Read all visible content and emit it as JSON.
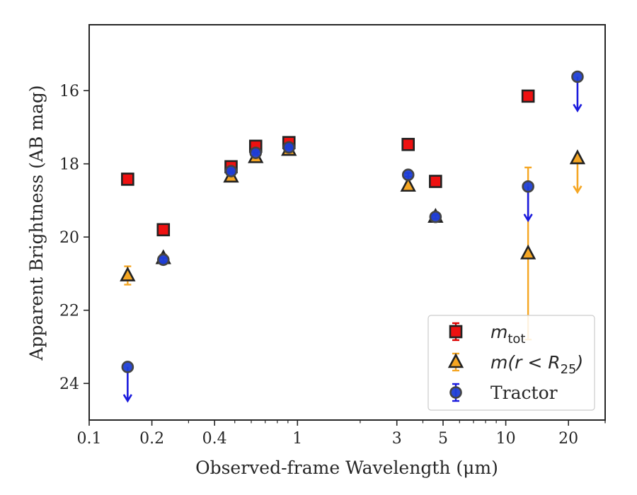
{
  "chart_data": {
    "type": "scatter",
    "xlabel": "Observed-frame Wavelength (μm)",
    "ylabel": "Apparent Brightness (AB mag)",
    "xscale": "log",
    "xlim": [
      0.1,
      30
    ],
    "ylim": [
      25,
      14.2
    ],
    "y_inverted": true,
    "xticks": [
      {
        "value": 0.1,
        "label": "0.1"
      },
      {
        "value": 0.2,
        "label": "0.2"
      },
      {
        "value": 0.4,
        "label": "0.4"
      },
      {
        "value": 1,
        "label": "1"
      },
      {
        "value": 3,
        "label": "3"
      },
      {
        "value": 5,
        "label": "5"
      },
      {
        "value": 10,
        "label": "10"
      },
      {
        "value": 20,
        "label": "20"
      }
    ],
    "yticks": [
      16,
      18,
      20,
      22,
      24
    ],
    "grid": false,
    "legend_position": "bottom-right",
    "series": [
      {
        "name": "m_tot",
        "marker": "square",
        "fill": "#ee1111",
        "edge": "#222222",
        "errcolor": "#dd0000",
        "points": [
          {
            "x": 0.153,
            "y": 18.42,
            "err": 0.04
          },
          {
            "x": 0.227,
            "y": 19.8,
            "err": 0.04
          },
          {
            "x": 0.48,
            "y": 18.08,
            "err": 0.04
          },
          {
            "x": 0.63,
            "y": 17.52,
            "err": 0.04
          },
          {
            "x": 0.91,
            "y": 17.42,
            "err": 0.04
          },
          {
            "x": 3.4,
            "y": 17.47,
            "err": 0.04
          },
          {
            "x": 4.6,
            "y": 18.48,
            "err": 0.04
          },
          {
            "x": 12.8,
            "y": 16.15,
            "err": 0.04
          }
        ]
      },
      {
        "name": "m(r < R25)",
        "marker": "triangle",
        "fill": "#f5a623",
        "edge": "#222222",
        "errcolor": "#f5a623",
        "points": [
          {
            "x": 0.153,
            "y": 21.05,
            "err": 0.25
          },
          {
            "x": 0.227,
            "y": 20.58,
            "err": 0.1
          },
          {
            "x": 0.48,
            "y": 18.35,
            "err": 0.05
          },
          {
            "x": 0.63,
            "y": 17.82,
            "err": 0.05
          },
          {
            "x": 0.91,
            "y": 17.62,
            "err": 0.05
          },
          {
            "x": 3.4,
            "y": 18.6,
            "err": 0.05
          },
          {
            "x": 4.6,
            "y": 19.45,
            "err": 0.05
          },
          {
            "x": 12.8,
            "y": 20.45,
            "err_low": 2.35,
            "err_high": 2.35
          },
          {
            "x": 22.1,
            "y": 17.85,
            "upper_limit": true
          }
        ]
      },
      {
        "name": "Tractor",
        "marker": "circle",
        "fill": "#1f3fd6",
        "edge": "#444444",
        "errcolor": "#1a1add",
        "points": [
          {
            "x": 0.153,
            "y": 23.55,
            "upper_limit": true
          },
          {
            "x": 0.227,
            "y": 20.62,
            "err": 0.05
          },
          {
            "x": 0.48,
            "y": 18.2,
            "err": 0.05
          },
          {
            "x": 0.63,
            "y": 17.7,
            "err": 0.05
          },
          {
            "x": 0.91,
            "y": 17.55,
            "err": 0.05
          },
          {
            "x": 3.4,
            "y": 18.3,
            "err": 0.05
          },
          {
            "x": 4.6,
            "y": 19.45,
            "err": 0.05
          },
          {
            "x": 12.8,
            "y": 18.62,
            "upper_limit": true
          },
          {
            "x": 22.1,
            "y": 15.62,
            "upper_limit": true
          }
        ]
      }
    ],
    "legend": [
      {
        "label": "m",
        "sub": "tot"
      },
      {
        "label": "m(r < R",
        "sub": "25",
        "suffix": ")"
      },
      {
        "label": "Tractor"
      }
    ]
  }
}
